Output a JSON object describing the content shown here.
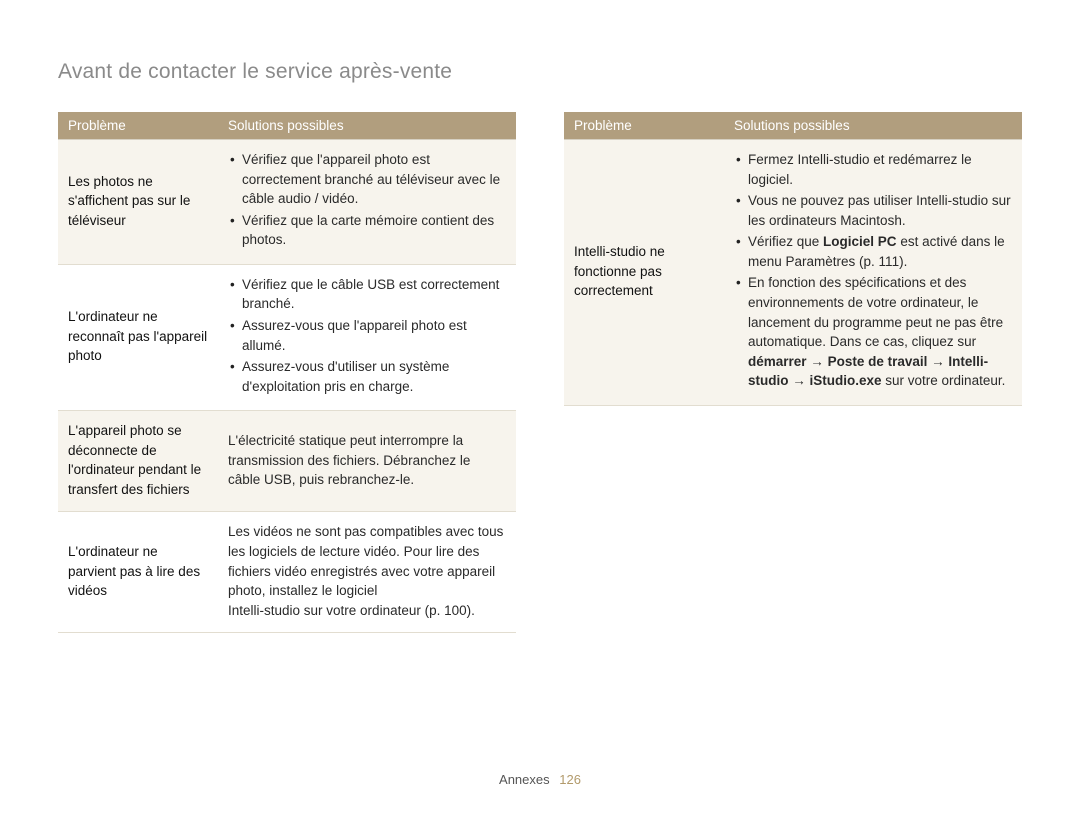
{
  "page_title": "Avant de contacter le service après-vente",
  "header": {
    "problem": "Problème",
    "solutions": "Solutions possibles"
  },
  "left_rows": [
    {
      "problem": "Les photos ne s'affichent pas sur le téléviseur",
      "type": "list",
      "items": [
        "Vérifiez que l'appareil photo est correctement branché au téléviseur avec le câble audio / vidéo.",
        "Vérifiez que la carte mémoire contient des photos."
      ]
    },
    {
      "problem": "L'ordinateur ne reconnaît pas l'appareil photo",
      "type": "list",
      "items": [
        "Vérifiez que le câble USB est correctement branché.",
        "Assurez-vous que l'appareil photo est allumé.",
        "Assurez-vous d'utiliser un système d'exploitation pris en charge."
      ]
    },
    {
      "problem": "L'appareil photo se déconnecte de l'ordinateur pendant le transfert des fichiers",
      "type": "text",
      "text": "L'électricité statique peut interrompre la transmission des fichiers. Débranchez le câble USB, puis rebranchez-le."
    },
    {
      "problem": "L'ordinateur ne parvient pas à lire des vidéos",
      "type": "text",
      "text": "Les vidéos ne sont pas compatibles avec tous les logiciels de lecture vidéo. Pour lire des fichiers vidéo enregistrés avec votre appareil photo, installez le logiciel\nIntelli-studio sur votre ordinateur (p. 100)."
    }
  ],
  "right_rows": [
    {
      "problem": "Intelli-studio ne fonctionne pas correctement",
      "type": "list",
      "items_html": [
        "Fermez Intelli-studio et redémarrez le logiciel.",
        "Vous ne pouvez pas utiliser Intelli-studio sur les ordinateurs Macintosh.",
        "Vérifiez que <b>Logiciel PC</b> est activé dans le menu Paramètres (p. 111).",
        "En fonction des spécifications et des environnements de votre ordinateur, le lancement du programme peut ne pas être automatique. Dans ce cas, cliquez sur <b>démarrer</b> → <b>Poste de travail</b> → <b>Intelli-studio</b> → <b>iStudio.exe</b> sur votre ordinateur."
      ]
    }
  ],
  "footer": {
    "section": "Annexes",
    "page": "126"
  }
}
